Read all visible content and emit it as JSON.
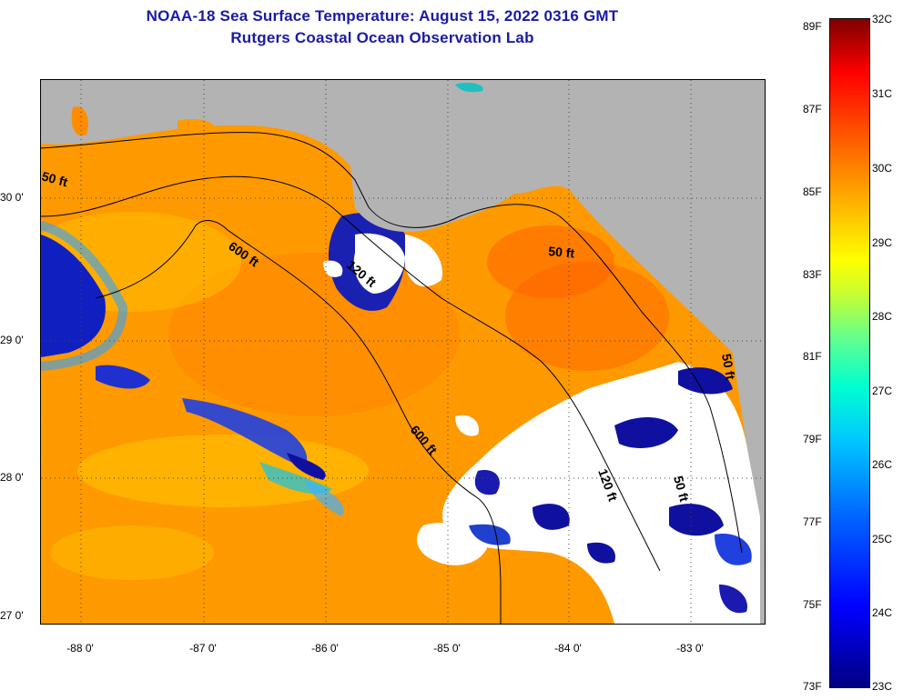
{
  "title": {
    "line1": "NOAA-18 Sea Surface Temperature:  August 15, 2022 0316 GMT",
    "line2": "Rutgers Coastal Ocean Observation Lab"
  },
  "map": {
    "lat_labels": [
      "30 0'",
      "29 0'",
      "28 0'",
      "27 0'"
    ],
    "lon_labels": [
      "-88 0'",
      "-87 0'",
      "-86 0'",
      "-85 0'",
      "-84 0'",
      "-83 0'"
    ],
    "contour_labels": [
      "50 ft",
      "600 ft",
      "120 ft",
      "50 ft",
      "600 ft",
      "120 ft",
      "50 ft",
      "50 ft"
    ],
    "colors": {
      "land": "#b3b3b3",
      "cloud": "#ffffff",
      "warm_water": "#ff9000"
    }
  },
  "colorbar": {
    "fahrenheit": [
      "89F",
      "87F",
      "85F",
      "83F",
      "81F",
      "79F",
      "77F",
      "75F",
      "73F"
    ],
    "celsius": [
      "32C",
      "31C",
      "30C",
      "29C",
      "28C",
      "27C",
      "26C",
      "25C",
      "24C",
      "23C"
    ]
  }
}
